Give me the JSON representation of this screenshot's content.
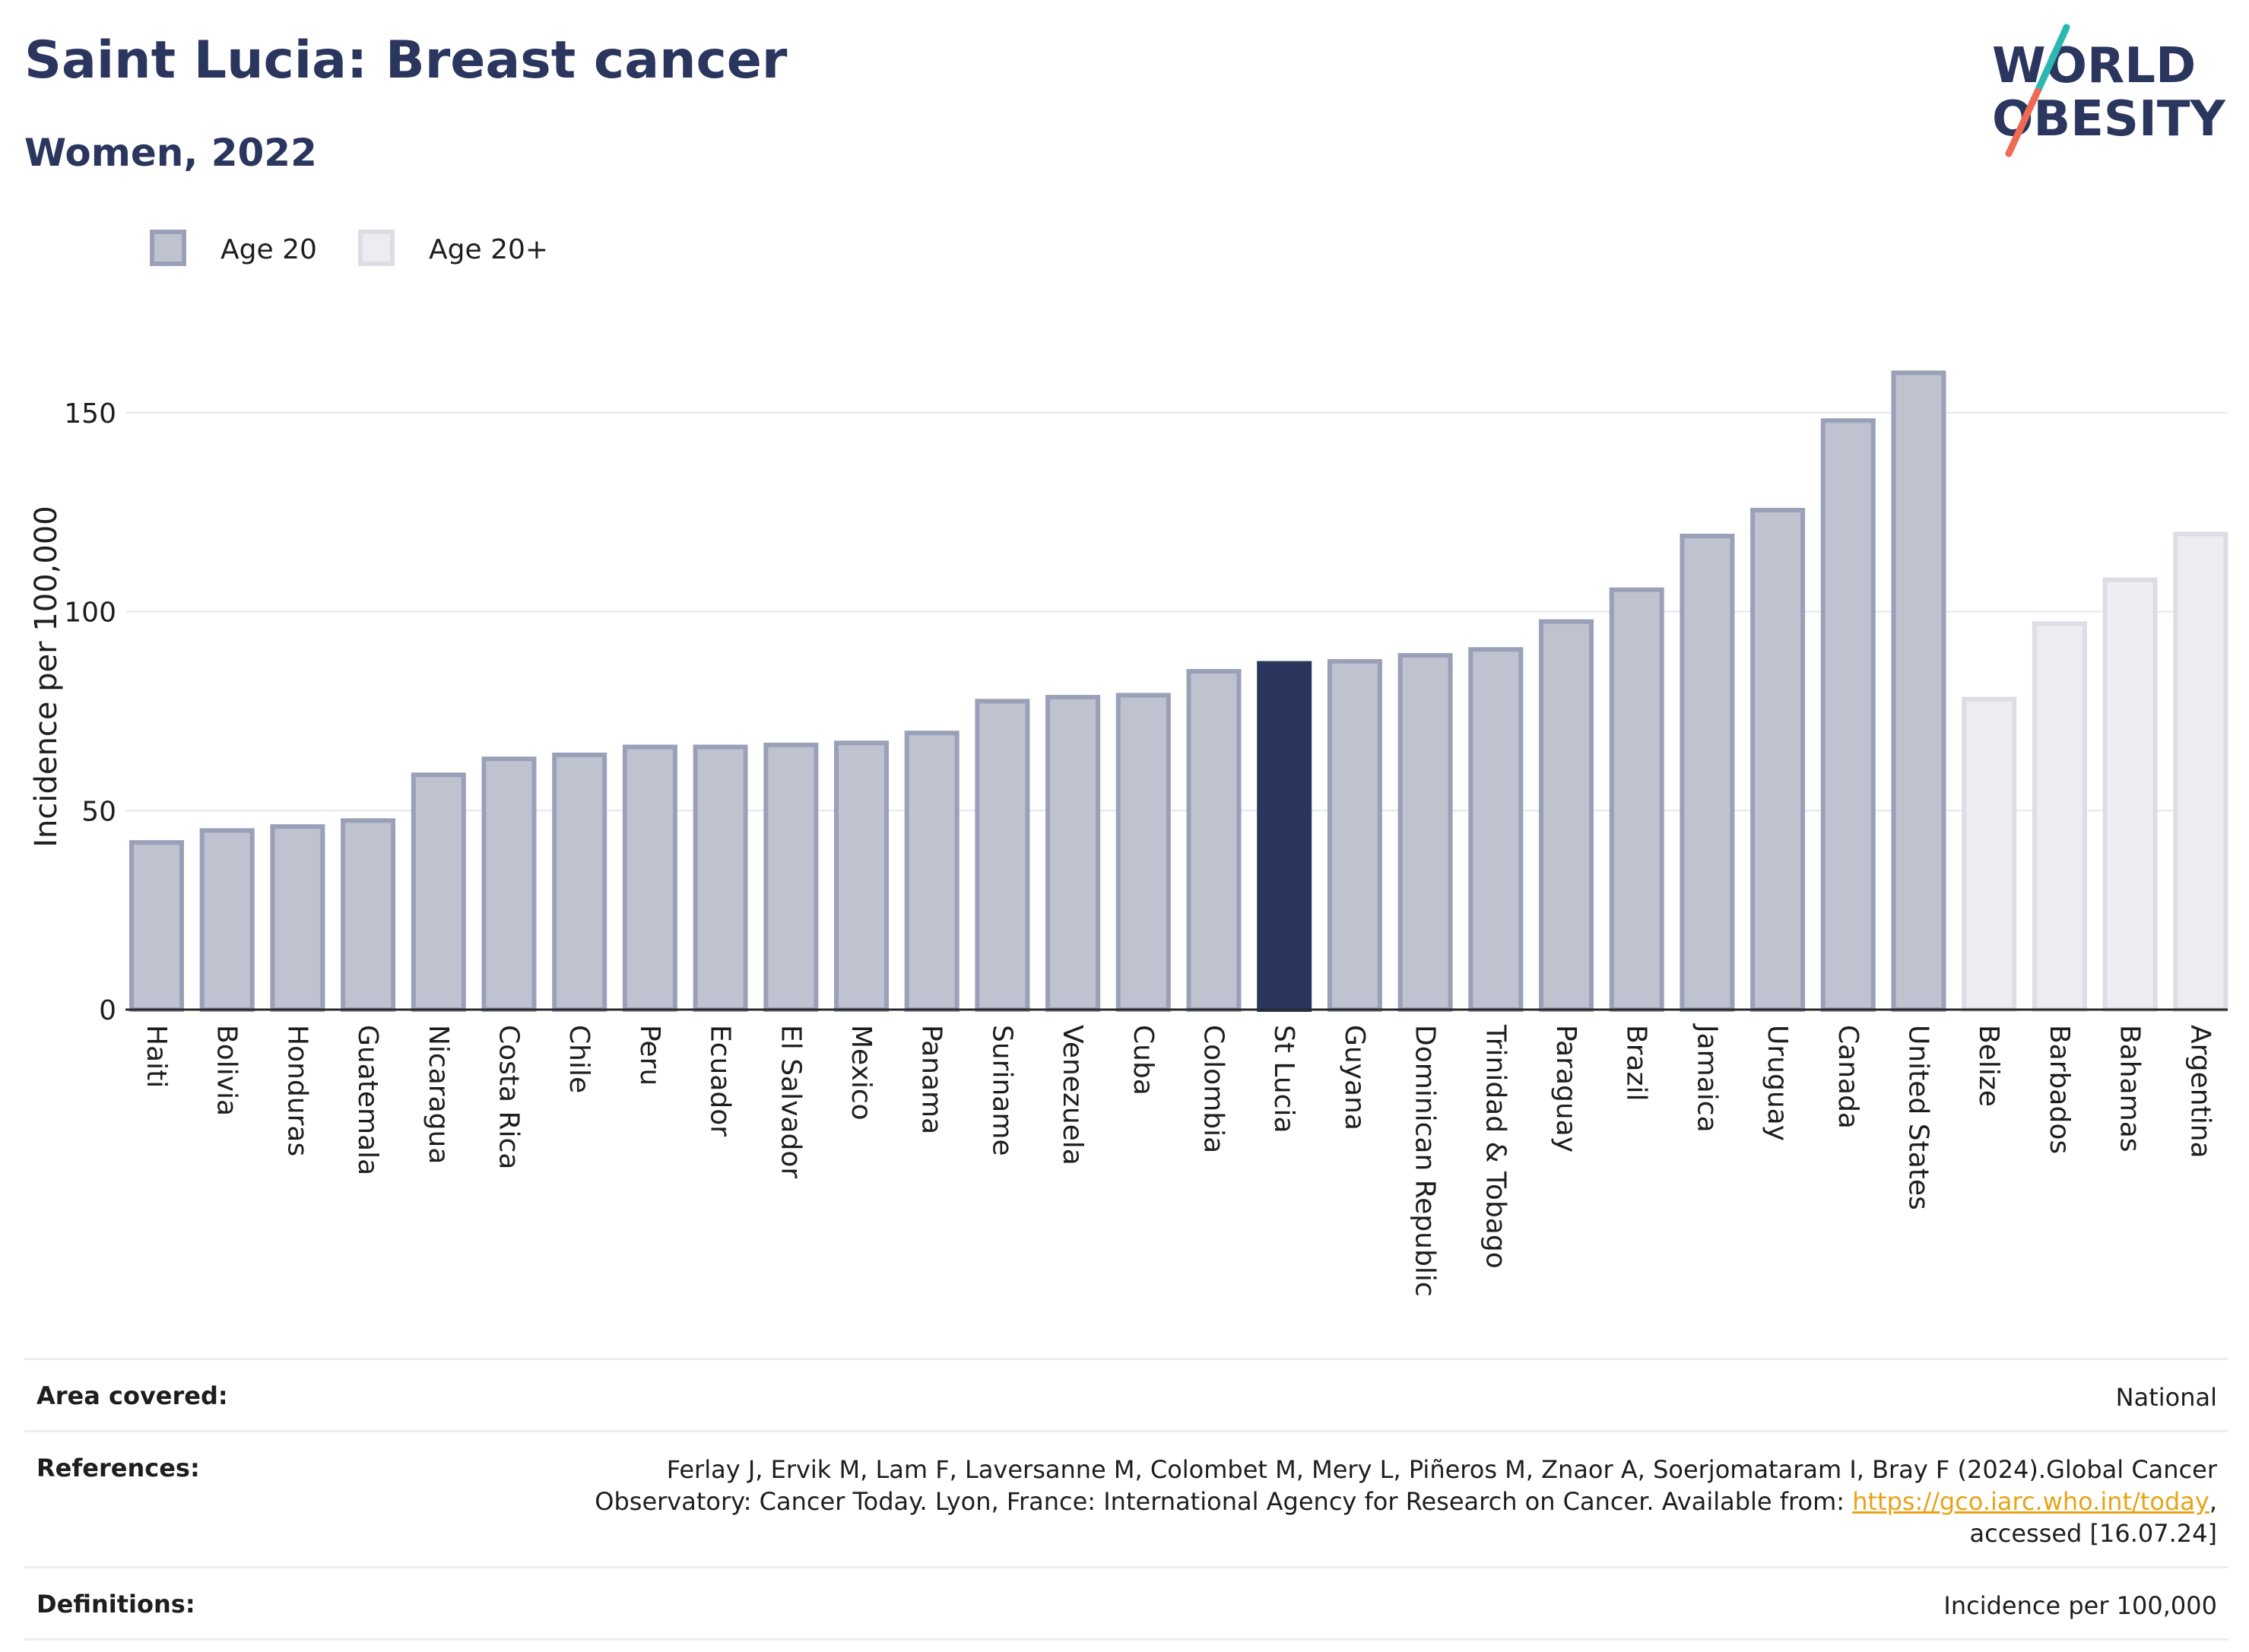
{
  "header": {
    "title": "Saint Lucia: Breast cancer",
    "subtitle": "Women, 2022"
  },
  "logo": {
    "line1": "WORLD",
    "line2": "OBESITY",
    "slash_color_top": "#2ab8b0",
    "slash_color_bottom": "#ee6a55"
  },
  "colors": {
    "age20_fill": "#bfc2cf",
    "age20_stroke": "#9aa0b8",
    "age20plus_fill": "#ededf1",
    "age20plus_stroke": "#dcdde5",
    "highlight": "#2b365f",
    "grid": "#e6e7ee"
  },
  "chart_data": {
    "type": "bar",
    "ylabel": "Incidence per 100,000",
    "ylim": [
      0,
      175
    ],
    "yticks": [
      0,
      50,
      100,
      150
    ],
    "grid": true,
    "legend_position": "top-left",
    "legend": [
      {
        "label": "Age 20",
        "series": "age20"
      },
      {
        "label": "Age 20+",
        "series": "age20plus"
      }
    ],
    "highlight": "St Lucia",
    "categories": [
      "Haiti",
      "Bolivia",
      "Honduras",
      "Guatemala",
      "Nicaragua",
      "Costa Rica",
      "Chile",
      "Peru",
      "Ecuador",
      "El Salvador",
      "Mexico",
      "Panama",
      "Suriname",
      "Venezuela",
      "Cuba",
      "Colombia",
      "St Lucia",
      "Guyana",
      "Dominican Republic",
      "Trinidad & Tobago",
      "Paraguay",
      "Brazil",
      "Jamaica",
      "Uruguay",
      "Canada",
      "United States",
      "Belize",
      "Barbados",
      "Bahamas",
      "Argentina"
    ],
    "values": [
      42,
      45,
      46,
      47.5,
      59,
      63,
      64,
      66,
      66,
      66.5,
      67,
      69.5,
      77.5,
      78.5,
      79,
      85,
      87,
      87.5,
      89,
      90.5,
      97.5,
      105.5,
      119,
      125.5,
      148,
      160,
      78,
      97,
      108,
      119.5
    ],
    "series_group": [
      "age20",
      "age20",
      "age20",
      "age20",
      "age20",
      "age20",
      "age20",
      "age20",
      "age20",
      "age20",
      "age20",
      "age20",
      "age20",
      "age20",
      "age20",
      "age20",
      "age20",
      "age20",
      "age20",
      "age20",
      "age20",
      "age20",
      "age20",
      "age20",
      "age20",
      "age20",
      "age20plus",
      "age20plus",
      "age20plus",
      "age20plus"
    ]
  },
  "info": {
    "area_label": "Area covered:",
    "area_value": "National",
    "references_label": "References:",
    "references_text1": "Ferlay J, Ervik M, Lam F, Laversanne M, Colombet M, Mery L, Piñeros M, Znaor A, Soerjomataram I, Bray F (2024).Global Cancer",
    "references_text2": "Observatory: Cancer Today. Lyon, France: International Agency for Research on Cancer. Available from: ",
    "references_link": "https://gco.iarc.who.int/today",
    "references_text3": ",",
    "references_text4": "accessed [16.07.24]",
    "definitions_label": "Definitions:",
    "definitions_value": "Incidence per 100,000"
  }
}
